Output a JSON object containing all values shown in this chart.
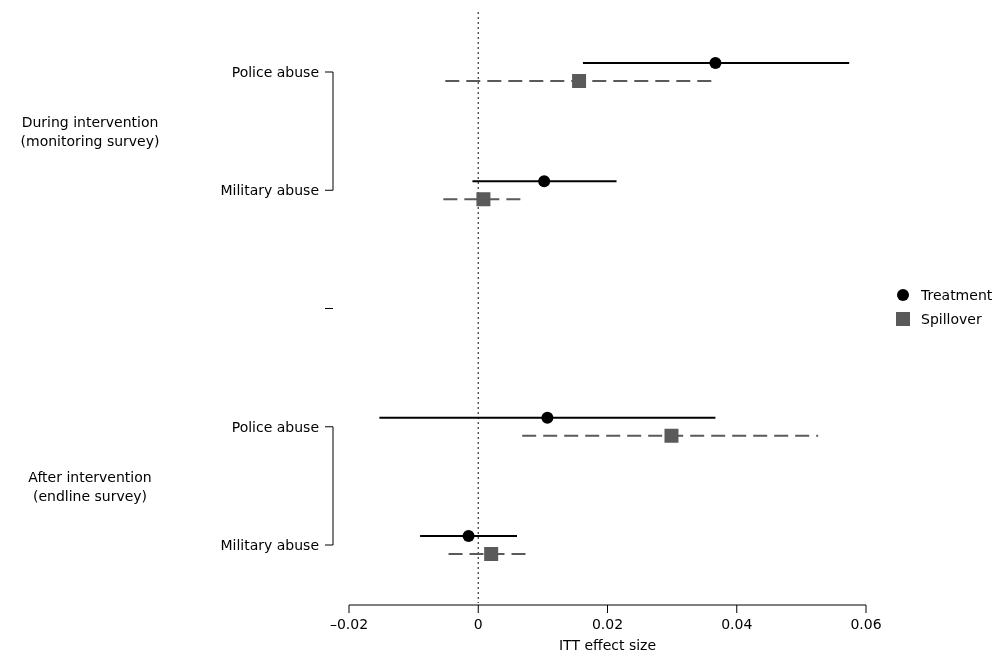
{
  "chart_data": {
    "type": "scatter",
    "orientation": "horizontal",
    "xlabel": "ITT effect size",
    "categories": [
      "Police abuse",
      "Military abuse",
      null,
      "Police abuse",
      "Military abuse"
    ],
    "annotations": [
      "During intervention\n(monitoring survey)",
      "After intervention\n(endline survey)"
    ],
    "series": [
      {
        "name": "Treatment",
        "color": "#000000",
        "marker": "circle",
        "line_style": "solid",
        "values": [
          0.0367,
          0.0102,
          null,
          0.0107,
          -0.0015
        ],
        "errors": [
          [
            0.0162,
            0.0574
          ],
          [
            -0.0009,
            0.0214
          ],
          null,
          [
            -0.0153,
            0.0367
          ],
          [
            -0.009,
            0.006
          ]
        ]
      },
      {
        "name": "Spillover",
        "color": "#5a5a5a",
        "marker": "square",
        "line_style": "dashed",
        "values": [
          0.0156,
          0.0008,
          null,
          0.0299,
          0.002
        ],
        "errors": [
          [
            -0.0051,
            0.0365
          ],
          [
            -0.0054,
            0.007
          ],
          null,
          [
            0.0068,
            0.0526
          ],
          [
            -0.0046,
            0.0076
          ]
        ]
      }
    ],
    "xlim": [
      -0.02,
      0.06
    ],
    "xticks": [
      {
        "value": -0.02,
        "label": "–0.02"
      },
      0,
      0.02,
      0.04,
      0.06
    ],
    "ref_lines": [
      {
        "axis": "x",
        "value": 0,
        "color": "#333333",
        "line_style": "dotted"
      }
    ],
    "legend": "right",
    "grid": false
  }
}
